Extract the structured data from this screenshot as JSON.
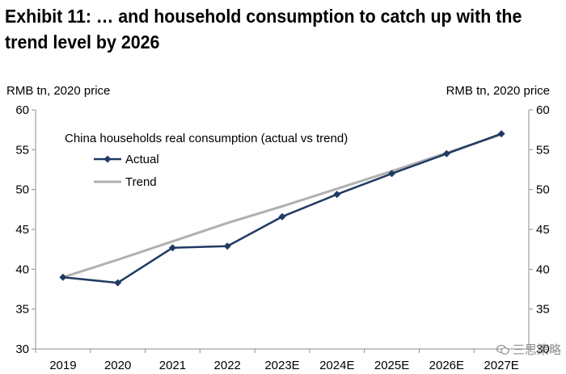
{
  "header": {
    "title": "Exhibit 11: … and household consumption to catch up with the trend level by 2026"
  },
  "axes": {
    "left_unit": "RMB tn, 2020 price",
    "right_unit": "RMB tn, 2020 price"
  },
  "watermark": {
    "text": "三思策略",
    "icon": "wechat-icon"
  },
  "colors": {
    "actual": "#1f3b63",
    "trend": "#b0b0b0",
    "axis": "#8c8c8c"
  },
  "chart_data": {
    "type": "line",
    "title": "China households real consumption (actual vs trend)",
    "xlabel": "",
    "ylabel": "RMB tn, 2020 price",
    "categories": [
      "2019",
      "2020",
      "2021",
      "2022",
      "2023E",
      "2024E",
      "2025E",
      "2026E",
      "2027E"
    ],
    "ylim": [
      30,
      60
    ],
    "yticks": [
      30,
      35,
      40,
      45,
      50,
      55,
      60
    ],
    "grid": false,
    "legend": "top-left",
    "series": [
      {
        "name": "Actual",
        "marker": "diamond",
        "values": [
          39.0,
          38.3,
          42.7,
          42.9,
          46.6,
          49.4,
          52.0,
          54.5,
          57.0
        ]
      },
      {
        "name": "Trend",
        "marker": "none",
        "values": [
          39.0,
          41.2,
          43.5,
          45.8,
          47.9,
          50.1,
          52.3,
          54.6,
          56.9
        ]
      }
    ]
  }
}
